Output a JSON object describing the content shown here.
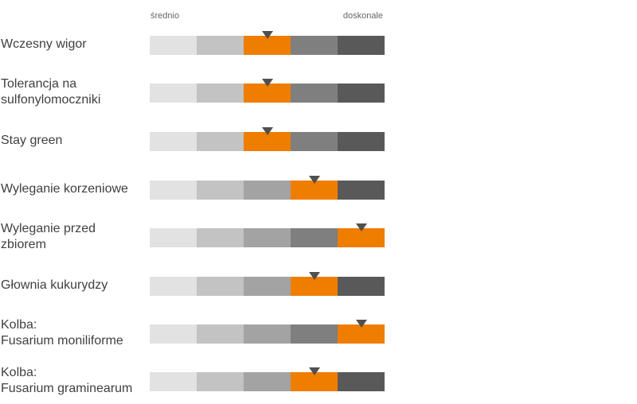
{
  "chart_data": {
    "type": "rating-scale",
    "scale_min_label": "średnio",
    "scale_max_label": "doskonale",
    "levels": 5,
    "segment_colors": [
      "#e2e2e2",
      "#c3c3c3",
      "#a3a3a3",
      "#7f7f7f",
      "#595959"
    ],
    "highlight_color": "#ef7d00",
    "marker_color": "#505050",
    "traits": [
      {
        "label": "Wczesny wigor",
        "rating": 3
      },
      {
        "label": "Tolerancja na\nsulfonylomoczniki",
        "rating": 3
      },
      {
        "label": "Stay green",
        "rating": 3
      },
      {
        "label": "Wyleganie korzeniowe",
        "rating": 4
      },
      {
        "label": "Wyleganie przed\nzbiorem",
        "rating": 5
      },
      {
        "label": "Głownia kukurydzy",
        "rating": 4
      },
      {
        "label": "Kolba:\nFusarium moniliforme",
        "rating": 5
      },
      {
        "label": "Kolba:\nFusarium graminearum",
        "rating": 4
      }
    ]
  }
}
